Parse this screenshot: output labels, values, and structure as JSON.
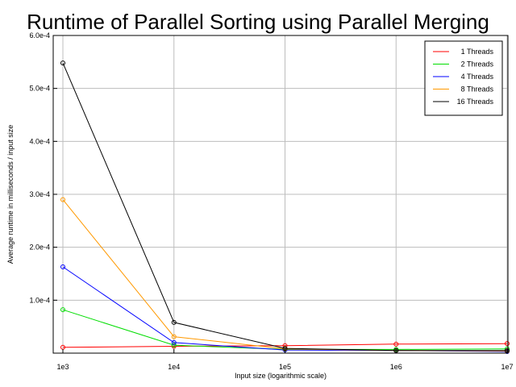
{
  "chart_data": {
    "type": "line",
    "title": "Runtime of Parallel Sorting using Parallel Merging",
    "xlabel": "Input size (logarithmic scale)",
    "ylabel": "Average runtime in milliseconds / input size",
    "x_scale": "log",
    "x": [
      1000,
      10000,
      100000,
      1000000,
      10000000
    ],
    "x_tick_labels": [
      "1e3",
      "1e4",
      "1e5",
      "1e6",
      "1e7"
    ],
    "ylim": [
      0,
      0.0006
    ],
    "y_ticks": [
      0.0001,
      0.0002,
      0.0003,
      0.0004,
      0.0005,
      0.0006
    ],
    "y_tick_labels": [
      "1.0e-4",
      "2.0e-4",
      "3.0e-4",
      "4.0e-4",
      "5.0e-4",
      "6.0e-4"
    ],
    "grid": true,
    "legend_position": "top-right",
    "series": [
      {
        "name": "1 Threads",
        "color": "#ff0000",
        "values": [
          1.1e-05,
          1.3e-05,
          1.4e-05,
          1.7e-05,
          1.8e-05
        ]
      },
      {
        "name": "2 Threads",
        "color": "#00dd00",
        "values": [
          8.2e-05,
          1.5e-05,
          7e-06,
          7e-06,
          8e-06
        ]
      },
      {
        "name": "4 Threads",
        "color": "#0000ff",
        "values": [
          0.000163,
          2e-05,
          6e-06,
          5e-06,
          3e-06
        ]
      },
      {
        "name": "8 Threads",
        "color": "#ff9900",
        "values": [
          0.00029,
          3.1e-05,
          8e-06,
          5e-06,
          4e-06
        ]
      },
      {
        "name": "16 Threads",
        "color": "#000000",
        "values": [
          0.000548,
          5.8e-05,
          9e-06,
          5e-06,
          5e-06
        ]
      }
    ]
  }
}
